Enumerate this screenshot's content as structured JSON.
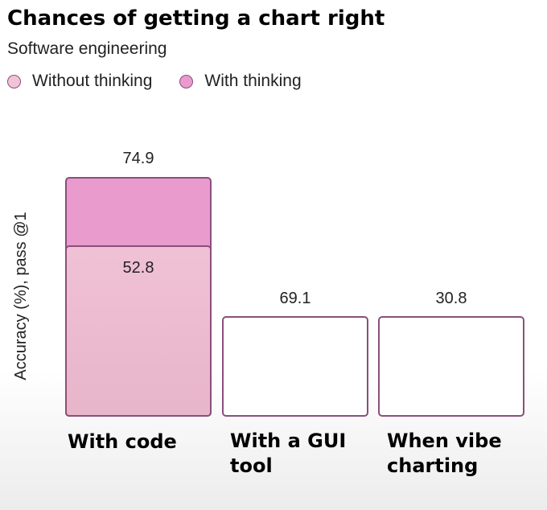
{
  "chart_data": {
    "type": "bar",
    "title": "Chances of getting a chart right",
    "subtitle": "Software engineering",
    "ylabel": "Accuracy (%), pass @1",
    "xlabel": "",
    "categories": [
      "With code",
      "With a GUI\n tool",
      "When vibe\ncharting"
    ],
    "series": [
      {
        "name": "Without thinking",
        "color": "#f0c3d6",
        "values": [
          52.8,
          69.1,
          30.8
        ]
      },
      {
        "name": "With thinking",
        "color": "#e89bcc",
        "values": [
          74.9,
          null,
          null
        ]
      }
    ],
    "value_labels": [
      "74.9",
      "52.8",
      "69.1",
      "30.8"
    ],
    "bar_border_color": "#8a4f7d",
    "legend_position": "top-left",
    "grid": false
  }
}
